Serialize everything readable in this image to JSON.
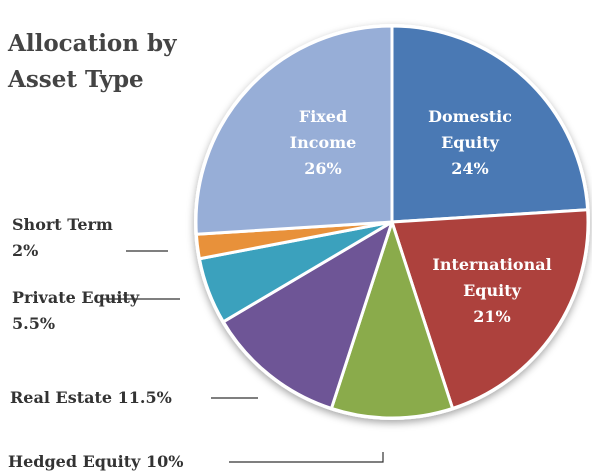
{
  "chart_data": {
    "type": "pie",
    "title": "Allocation by Asset Type",
    "categories": [
      "Domestic Equity",
      "International Equity",
      "Hedged Equity",
      "Real Estate",
      "Private Equity",
      "Short Term",
      "Fixed Income"
    ],
    "values": [
      24,
      21,
      10,
      11.5,
      5.5,
      2,
      26
    ],
    "value_labels": [
      "24%",
      "21%",
      "10%",
      "11.5%",
      "5.5%",
      "2%",
      "26%"
    ],
    "colors": [
      "#4a79b4",
      "#ad413d",
      "#8aab4b",
      "#6e5596",
      "#3ba1bd",
      "#e8913a",
      "#97aed7"
    ]
  }
}
